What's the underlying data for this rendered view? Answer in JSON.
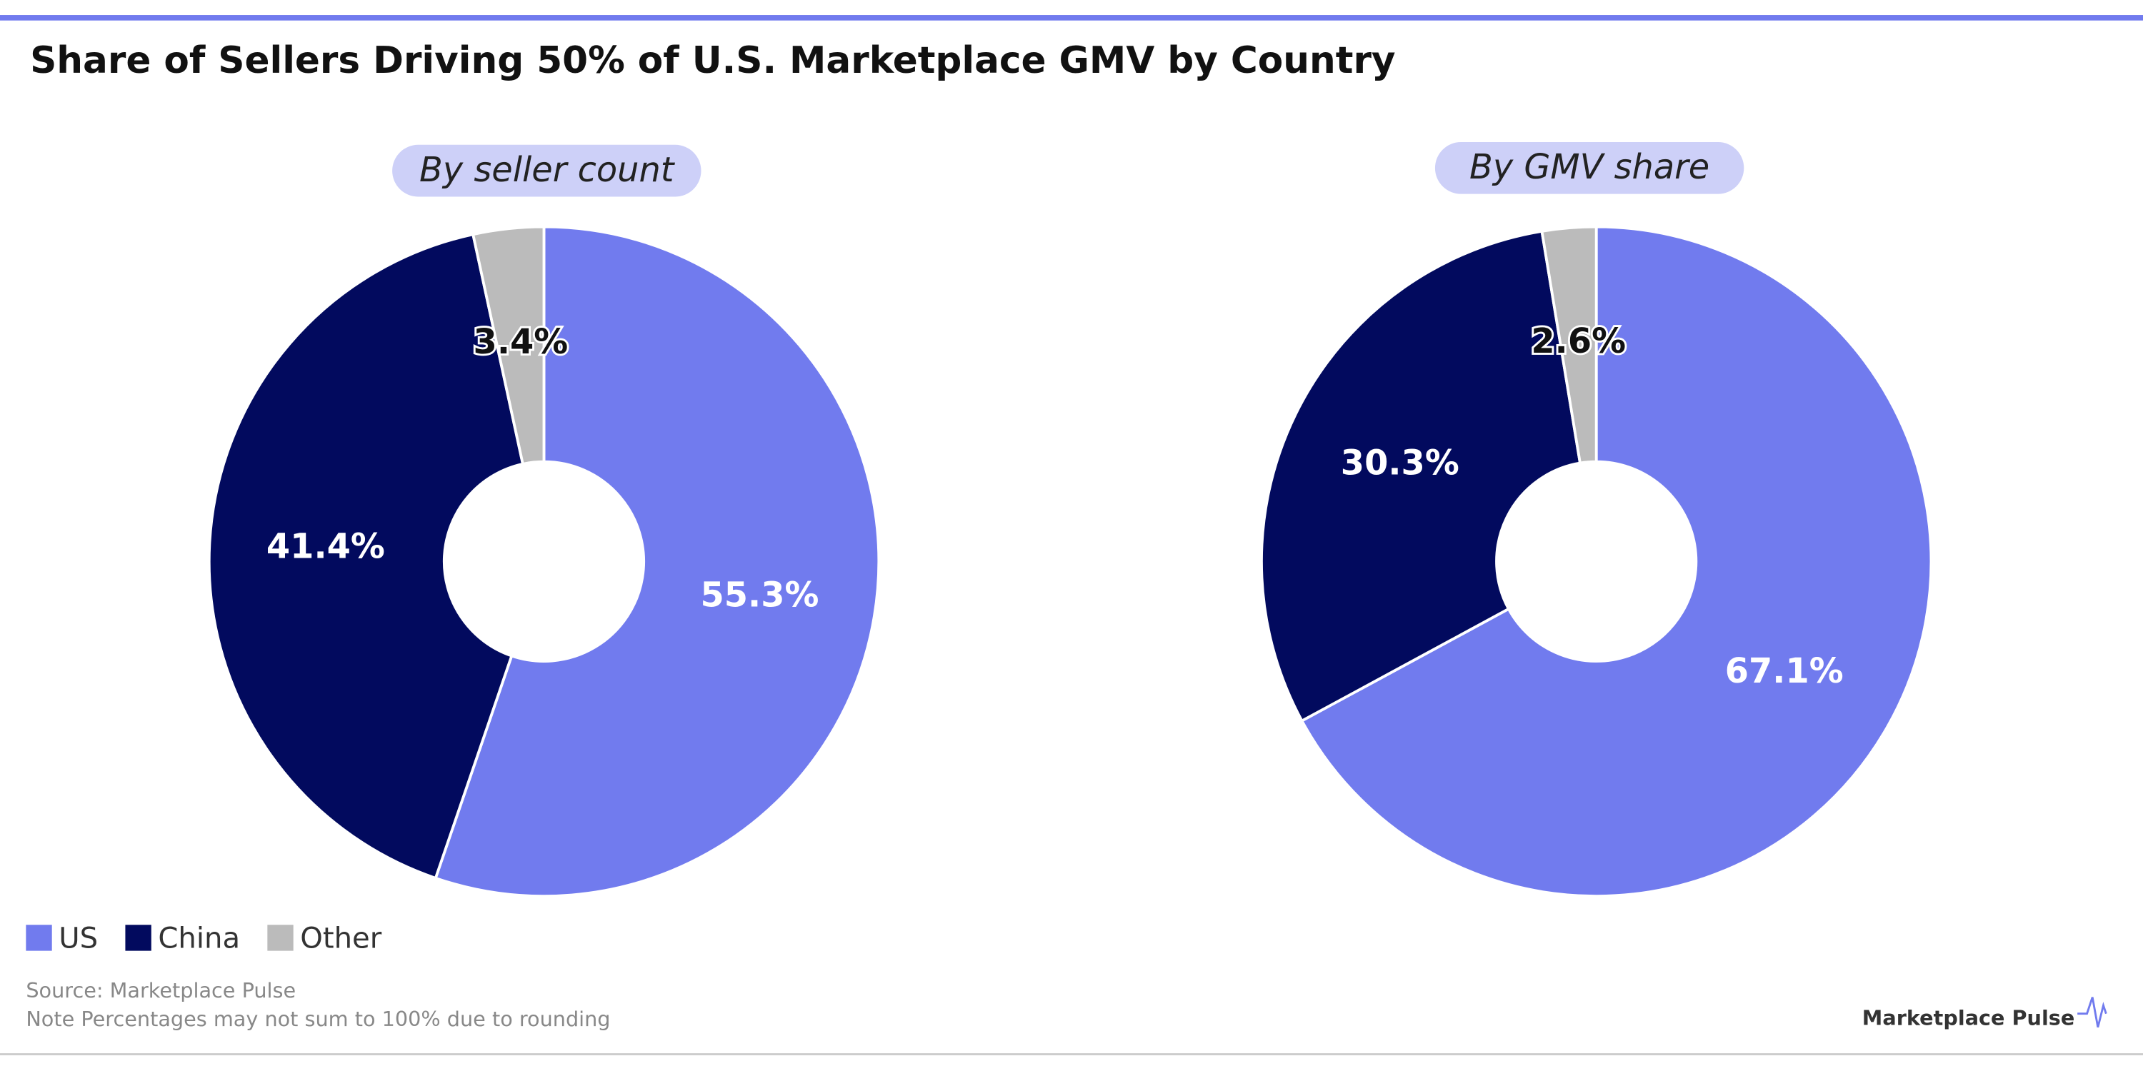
{
  "title": "Share of Sellers Driving 50% of U.S. Marketplace GMV by Country",
  "chart_data": [
    {
      "type": "pie",
      "subtitle": "By seller count",
      "categories": [
        "US",
        "China",
        "Other"
      ],
      "values": [
        55.3,
        41.4,
        3.4
      ],
      "value_labels": [
        "55.3%",
        "41.4%",
        "3.4%"
      ],
      "colors": [
        "#717bee",
        "#020a5e",
        "#bbbbbb"
      ]
    },
    {
      "type": "pie",
      "subtitle": "By GMV share",
      "categories": [
        "US",
        "China",
        "Other"
      ],
      "values": [
        67.1,
        30.3,
        2.6
      ],
      "value_labels": [
        "67.1%",
        "30.3%",
        "2.6%"
      ],
      "colors": [
        "#717bee",
        "#020a5e",
        "#bbbbbb"
      ]
    }
  ],
  "source": "Source: Marketplace Pulse",
  "note": "Note Percentages may not sum to 100% due to rounding",
  "logo": "Marketplace Pulse"
}
